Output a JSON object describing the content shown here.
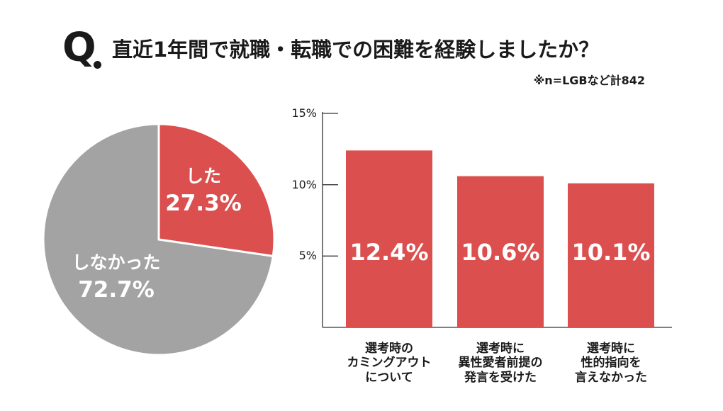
{
  "header": {
    "q_mark": "Q",
    "question": "直近1年間で就職・転職での困難を経験しましたか？",
    "note": "※n=LGBなど計842"
  },
  "chart_data": [
    {
      "type": "pie",
      "slices": [
        {
          "label": "した",
          "value": 27.3,
          "display": "27.3%",
          "color": "#dc4f4f"
        },
        {
          "label": "しなかった",
          "value": 72.7,
          "display": "72.7%",
          "color": "#a3a3a3"
        }
      ]
    },
    {
      "type": "bar",
      "categories": [
        "選考時の\nカミングアウト\nについて",
        "選考時に\n異性愛者前提の\n発言を受けた",
        "選考時に\n性的指向を\n言えなかった"
      ],
      "values": [
        12.4,
        10.6,
        10.1
      ],
      "value_labels": [
        "12.4%",
        "10.6%",
        "10.1%"
      ],
      "yticks": [
        5,
        10,
        15
      ],
      "ytick_labels": [
        "5%",
        "10%",
        "15%"
      ],
      "ylim": [
        0,
        15
      ],
      "color": "#dc4f4f"
    }
  ]
}
